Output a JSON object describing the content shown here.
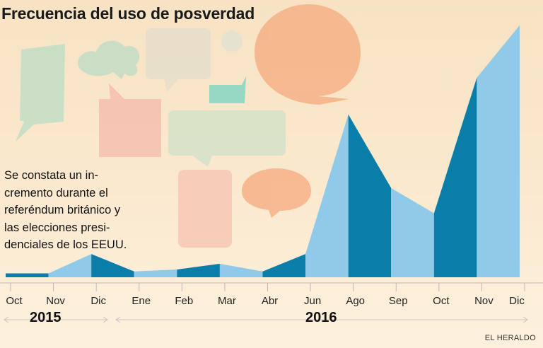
{
  "colors": {
    "dark_band": "#0a7ea8",
    "light_band": "#8fcbe8",
    "axis": "#bbbbbb",
    "bubble_green": "#b9dcc5",
    "bubble_pink": "#f6b9aa",
    "bubble_orange": "#f5a77a",
    "bubble_teal": "#6fd3c3",
    "bubble_grey": "#e3ddcc"
  },
  "annotation": {
    "lines": [
      "Se constata un in-",
      "cremento durante el",
      "referéndum británico y",
      "las elecciones presi-",
      "denciales de los EEUU."
    ]
  },
  "source": "EL HERALDO",
  "chart_data": {
    "type": "area",
    "title": "Frecuencia del uso de posverdad",
    "xlabel": "",
    "ylabel": "",
    "categories": [
      "Oct",
      "Nov",
      "Dic",
      "Ene",
      "Feb",
      "Mar",
      "Abr",
      "Jun",
      "Ago",
      "Sep",
      "Oct",
      "Nov",
      "Dic"
    ],
    "years": [
      {
        "label": "2015",
        "span": [
          0,
          2
        ]
      },
      {
        "label": "2016",
        "span": [
          3,
          12
        ]
      }
    ],
    "values": [
      2,
      2,
      12,
      3,
      4,
      7,
      3,
      12,
      84,
      46,
      33,
      103,
      130
    ],
    "ylim": [
      0,
      135
    ],
    "y_axis_visible": false,
    "grid": false,
    "legend": "none"
  }
}
